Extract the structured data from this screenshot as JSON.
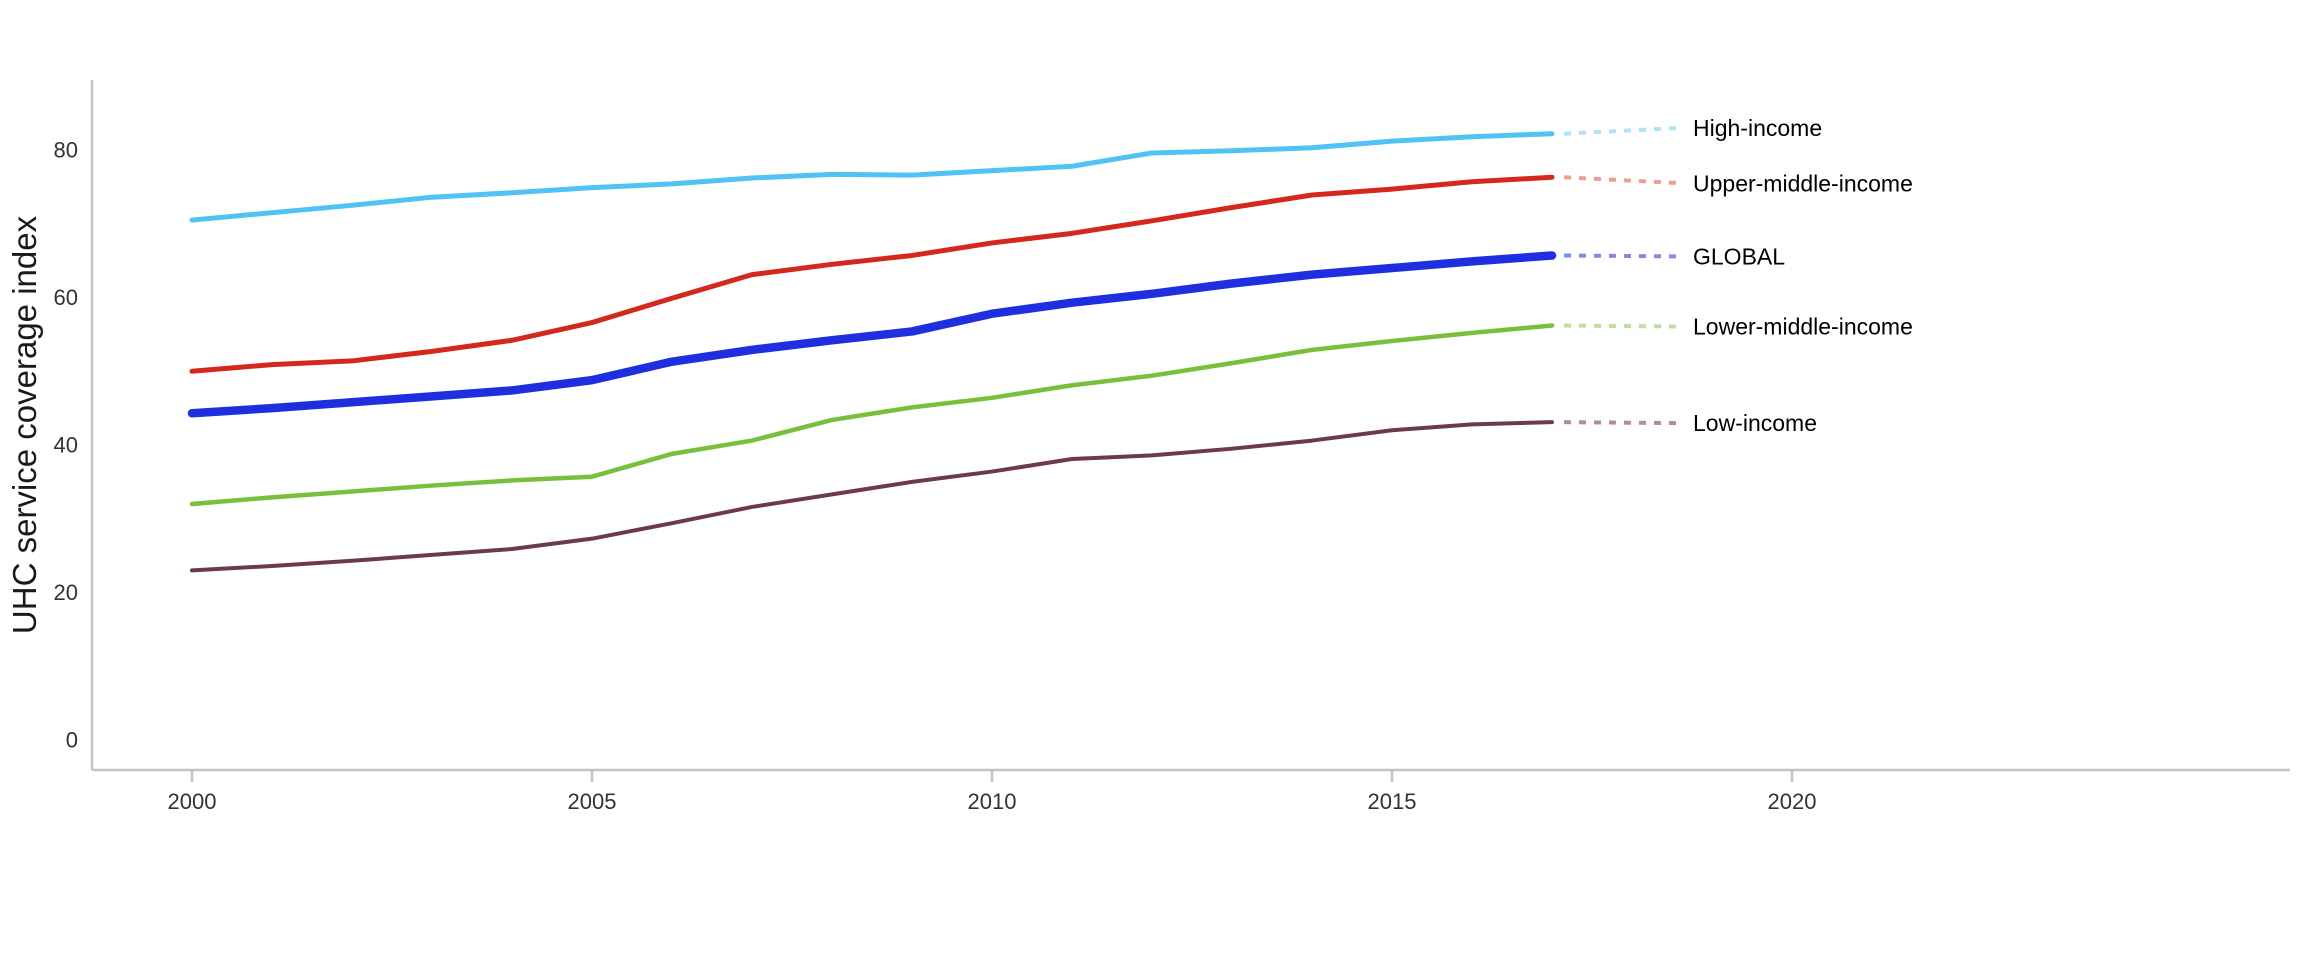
{
  "figure": {
    "y_axis_title": "UHC service coverage index",
    "x_tick_labels": [
      "2000",
      "2005",
      "2010",
      "2015",
      "2020"
    ],
    "y_tick_labels": [
      "0",
      "20",
      "40",
      "60",
      "80"
    ],
    "axis_color": "#c4c4c4",
    "tick_text_color": "#333333",
    "label_text_color": "#000000",
    "background_color": "#ffffff"
  },
  "chart_data": {
    "type": "line",
    "title": "",
    "xlabel": "",
    "ylabel": "UHC service coverage index",
    "x": [
      2000,
      2001,
      2002,
      2003,
      2004,
      2005,
      2006,
      2007,
      2008,
      2009,
      2010,
      2011,
      2012,
      2013,
      2014,
      2015,
      2016,
      2017
    ],
    "x_ticks": [
      2000,
      2005,
      2010,
      2015,
      2020
    ],
    "y_ticks": [
      0,
      20,
      40,
      60,
      80
    ],
    "xlim": [
      1998.75,
      2026.2
    ],
    "ylim": [
      -4,
      89.5
    ],
    "grid": false,
    "legend_position": "right-end-labels",
    "series": [
      {
        "name": "High-income",
        "color": "#50c2f3",
        "leader_color": "#aee3f9",
        "line_width": 5,
        "values": [
          70.5,
          71.5,
          72.5,
          73.6,
          74.2,
          74.9,
          75.4,
          76.2,
          76.7,
          76.6,
          77.2,
          77.8,
          79.6,
          79.9,
          80.3,
          81.2,
          81.8,
          82.2
        ]
      },
      {
        "name": "Upper-middle-income",
        "color": "#d5281c",
        "leader_color": "#ef9d93",
        "line_width": 5,
        "values": [
          50.0,
          50.9,
          51.4,
          52.7,
          54.2,
          56.6,
          59.9,
          63.1,
          64.5,
          65.7,
          67.4,
          68.7,
          70.4,
          72.2,
          73.9,
          74.7,
          75.7,
          76.3
        ]
      },
      {
        "name": "GLOBAL",
        "color": "#1f2fe0",
        "leader_color": "#7f8cec",
        "line_width": 8.5,
        "values": [
          44.3,
          45.0,
          45.8,
          46.6,
          47.4,
          48.8,
          51.3,
          52.9,
          54.2,
          55.4,
          57.8,
          59.3,
          60.5,
          61.9,
          63.1,
          64.0,
          64.9,
          65.7
        ]
      },
      {
        "name": "Lower-middle-income",
        "color": "#78c03c",
        "leader_color": "#bce19b",
        "line_width": 4.5,
        "values": [
          32.0,
          32.9,
          33.7,
          34.5,
          35.2,
          35.7,
          38.8,
          40.6,
          43.4,
          45.1,
          46.4,
          48.1,
          49.4,
          51.1,
          52.9,
          54.1,
          55.2,
          56.2
        ]
      },
      {
        "name": "Low-income",
        "color": "#6e3a49",
        "leader_color": "#b08d98",
        "line_width": 4,
        "values": [
          23.0,
          23.6,
          24.3,
          25.1,
          25.9,
          27.3,
          29.4,
          31.6,
          33.3,
          35.0,
          36.4,
          38.1,
          38.6,
          39.5,
          40.6,
          42.0,
          42.8,
          43.1
        ]
      }
    ]
  }
}
